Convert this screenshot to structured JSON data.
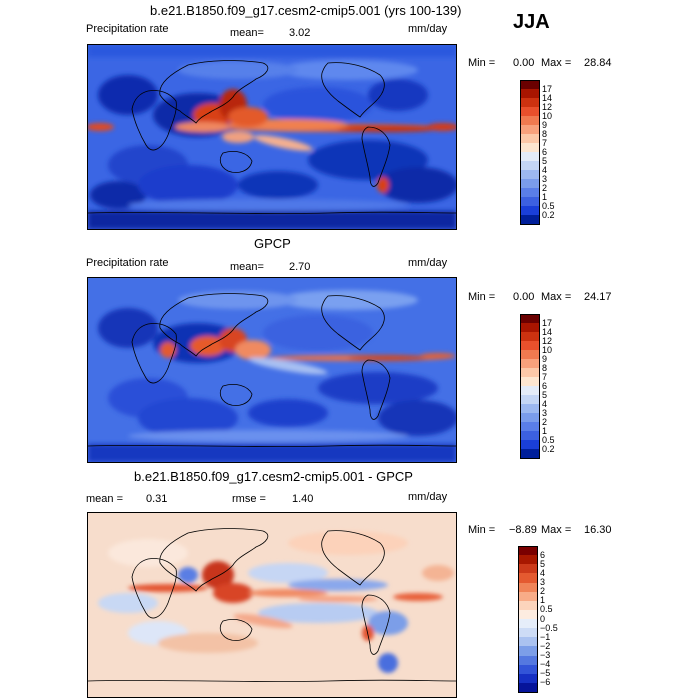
{
  "season": "JJA",
  "units": "mm/day",
  "panels": [
    {
      "title": "b.e21.B1850.f09_g17.cesm2-cmip5.001 (yrs 100-139)",
      "left_label": "Precipitation rate",
      "mean_label": "mean=",
      "mean_value": "3.02",
      "units": "mm/day",
      "stats": {
        "min_label": "Min =",
        "min": "0.00",
        "max_label": "Max =",
        "max": "28.84"
      },
      "colorbar": {
        "labels": [
          "17",
          "14",
          "12",
          "10",
          "9",
          "8",
          "7",
          "6",
          "5",
          "4",
          "3",
          "2",
          "1",
          "0.5",
          "0.2"
        ],
        "colors": [
          "#6a0000",
          "#a81500",
          "#cc3210",
          "#e8502c",
          "#f07a50",
          "#f8a17c",
          "#fcc8a8",
          "#fde6d0",
          "#e4ecf8",
          "#c4d6f5",
          "#9cb8f0",
          "#7a9ceb",
          "#5a7ee8",
          "#3c60e0",
          "#1a3fd8",
          "#001f9a"
        ]
      }
    },
    {
      "title": "GPCP",
      "left_label": "Precipitation rate",
      "mean_label": "mean=",
      "mean_value": "2.70",
      "units": "mm/day",
      "stats": {
        "min_label": "Min =",
        "min": "0.00",
        "max_label": "Max =",
        "max": "24.17"
      },
      "colorbar": {
        "labels": [
          "17",
          "14",
          "12",
          "10",
          "9",
          "8",
          "7",
          "6",
          "5",
          "4",
          "3",
          "2",
          "1",
          "0.5",
          "0.2"
        ],
        "colors": [
          "#6a0000",
          "#a81500",
          "#cc3210",
          "#e8502c",
          "#f07a50",
          "#f8a17c",
          "#fcc8a8",
          "#fde6d0",
          "#e4ecf8",
          "#c4d6f5",
          "#9cb8f0",
          "#7a9ceb",
          "#5a7ee8",
          "#3c60e0",
          "#1a3fd8",
          "#001f9a"
        ]
      }
    },
    {
      "title": "b.e21.B1850.f09_g17.cesm2-cmip5.001 - GPCP",
      "mean_label": "mean =",
      "mean_value": "0.31",
      "rmse_label": "rmse =",
      "rmse_value": "1.40",
      "units": "mm/day",
      "stats": {
        "min_label": "Min =",
        "min": "−8.89",
        "max_label": "Max =",
        "max": "16.30"
      },
      "colorbar": {
        "labels": [
          "6",
          "5",
          "4",
          "3",
          "2",
          "1",
          "0.5",
          "0",
          "−0.5",
          "−1",
          "−2",
          "−3",
          "−4",
          "−5",
          "−6"
        ],
        "colors": [
          "#7a0000",
          "#a81800",
          "#cc3a1a",
          "#e45a30",
          "#f08458",
          "#f8ac88",
          "#fcd4bc",
          "#fdece0",
          "#e6eefa",
          "#cddcf6",
          "#aac2f0",
          "#7c9ee8",
          "#5478e0",
          "#3254d8",
          "#1630c4",
          "#06149a"
        ]
      }
    }
  ],
  "colors": {
    "land_dry": "#2a4fdc",
    "ocean_base": "#3a64e4",
    "desert": "#0c2aa8",
    "itcz": "#e24a1c",
    "diff_base": "#f6dccb"
  }
}
